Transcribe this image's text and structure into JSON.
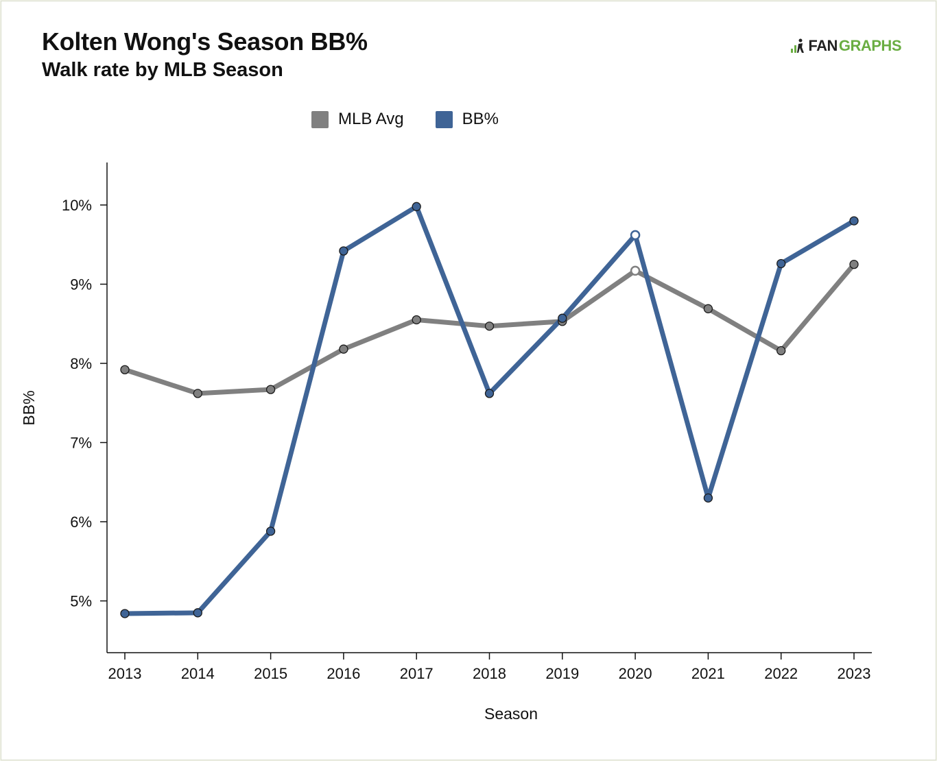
{
  "brand": {
    "text_a": "FAN",
    "text_b": "GRAPHS",
    "icon": "fangraphs-logo-icon"
  },
  "colors": {
    "mlb_avg": "#808080",
    "bb_pct": "#3f6496",
    "axis": "#111111"
  },
  "chart_data": {
    "type": "line",
    "title": "Kolten Wong's Season BB%",
    "subtitle": "Walk rate by MLB Season",
    "xlabel": "Season",
    "ylabel": "BB%",
    "x": [
      2013,
      2014,
      2015,
      2016,
      2017,
      2018,
      2019,
      2020,
      2021,
      2022,
      2023
    ],
    "ylim": [
      4.5,
      10.5
    ],
    "yticks": [
      5,
      6,
      7,
      8,
      9,
      10
    ],
    "ytick_labels": [
      "5%",
      "6%",
      "7%",
      "8%",
      "9%",
      "10%"
    ],
    "legend": "top-center",
    "grid": false,
    "series": [
      {
        "name": "MLB Avg",
        "values": [
          7.92,
          7.62,
          7.67,
          8.18,
          8.55,
          8.47,
          8.53,
          9.17,
          8.69,
          8.16,
          9.25
        ]
      },
      {
        "name": "BB%",
        "values": [
          4.84,
          4.85,
          5.88,
          9.42,
          9.98,
          7.62,
          8.57,
          9.62,
          6.3,
          9.26,
          9.8
        ]
      }
    ]
  }
}
